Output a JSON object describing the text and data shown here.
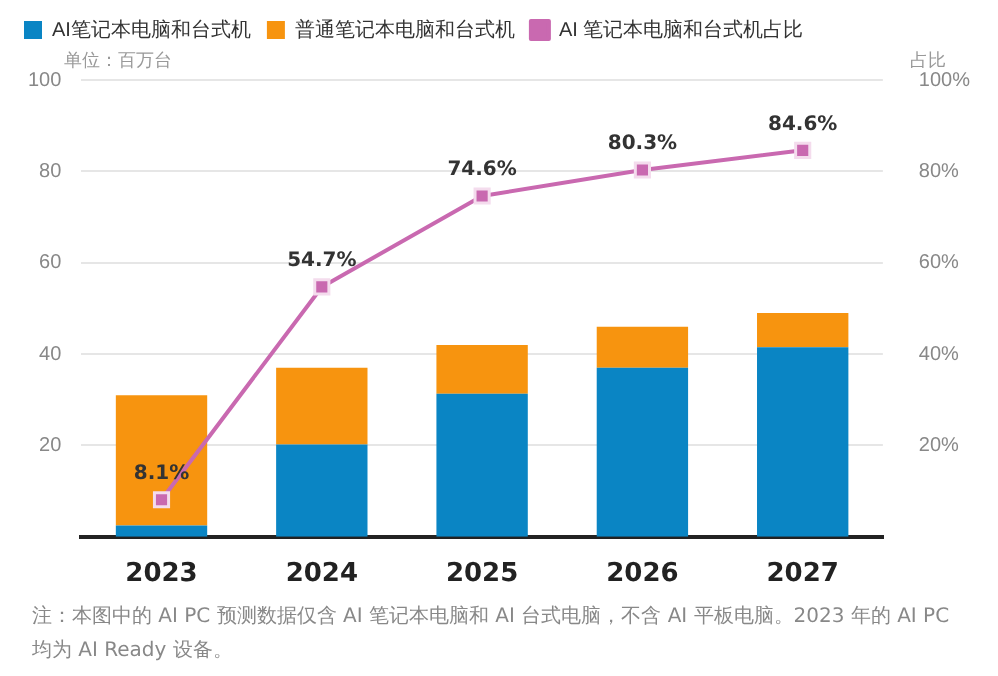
{
  "chart_data": {
    "type": "bar",
    "stacked": true,
    "categories": [
      "2023",
      "2024",
      "2025",
      "2026",
      "2027"
    ],
    "series": [
      {
        "name": "AI笔记本电脑和台式机",
        "color": "#0a85c4",
        "values": [
          2.5,
          20.2,
          31.3,
          37,
          41.5
        ]
      },
      {
        "name": "普通笔记本电脑和台式机",
        "color": "#f7940f",
        "values": [
          28.5,
          16.8,
          10.7,
          9,
          7.5
        ]
      },
      {
        "name": "AI 笔记本电脑和台式机占比",
        "type": "line",
        "axis": "y2",
        "color": "#c969b0",
        "marker": "square",
        "values": [
          8.1,
          54.7,
          74.6,
          80.3,
          84.6
        ],
        "value_labels": [
          "8.1%",
          "54.7%",
          "74.6%",
          "80.3%",
          "84.6%"
        ]
      }
    ],
    "ylabel": "单位：百万台",
    "y2label": "占比",
    "ylim": [
      0,
      100
    ],
    "yticks": [
      20,
      40,
      60,
      80,
      100
    ],
    "y2lim": [
      0,
      100
    ],
    "y2ticks": [
      {
        "value": 20,
        "label": "20%"
      },
      {
        "value": 40,
        "label": "40%"
      },
      {
        "value": 60,
        "label": "60%"
      },
      {
        "value": 80,
        "label": "80%"
      },
      {
        "value": 100,
        "label": "100%"
      }
    ],
    "grid": "y",
    "legend": "top",
    "annotations": [
      "注：本图中的 AI PC 预测数据仅含 AI 笔记本电脑和 AI 台式电脑，不含 AI 平板电脑。2023 年的 AI PC 均为 AI Ready 设备。"
    ]
  }
}
